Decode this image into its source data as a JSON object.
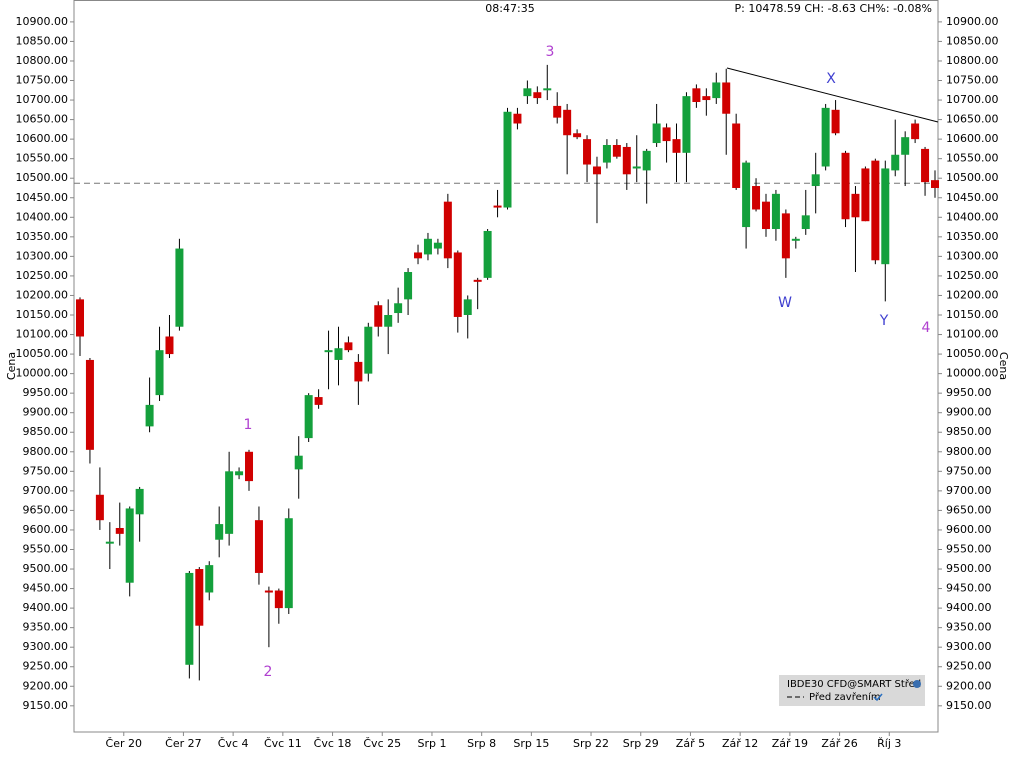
{
  "chart_data": {
    "type": "candlestick",
    "header_time": "08:47:35",
    "header_quote": "P: 10478.59 CH: -8.63  CH%: -0.08%",
    "ylabel": "Cena",
    "up_color": "#14a03c",
    "down_color": "#d00000",
    "grid": false,
    "prev_close": 10487.22,
    "legend": {
      "instrument": "IBDE30 CFD@SMART Střed",
      "line_label": "Před zavřením"
    },
    "annotations": [
      "1",
      "2",
      "3",
      "4",
      "W",
      "X",
      "Y"
    ],
    "ylim": [
      9083,
      10956
    ],
    "yticks": [
      {
        "value": 9150,
        "label": "9150.00"
      },
      {
        "value": 9200,
        "label": "9200.00"
      },
      {
        "value": 9250,
        "label": "9250.00"
      },
      {
        "value": 9300,
        "label": "9300.00"
      },
      {
        "value": 9350,
        "label": "9350.00"
      },
      {
        "value": 9400,
        "label": "9400.00"
      },
      {
        "value": 9450,
        "label": "9450.00"
      },
      {
        "value": 9500,
        "label": "9500.00"
      },
      {
        "value": 9550,
        "label": "9550.00"
      },
      {
        "value": 9600,
        "label": "9600.00"
      },
      {
        "value": 9650,
        "label": "9650.00"
      },
      {
        "value": 9700,
        "label": "9700.00"
      },
      {
        "value": 9750,
        "label": "9750.00"
      },
      {
        "value": 9800,
        "label": "9800.00"
      },
      {
        "value": 9850,
        "label": "9850.00"
      },
      {
        "value": 9900,
        "label": "9900.00"
      },
      {
        "value": 9950,
        "label": "9950.00"
      },
      {
        "value": 10000,
        "label": "10000.00"
      },
      {
        "value": 10050,
        "label": "10050.00"
      },
      {
        "value": 10100,
        "label": "10100.00"
      },
      {
        "value": 10150,
        "label": "10150.00"
      },
      {
        "value": 10200,
        "label": "10200.00"
      },
      {
        "value": 10250,
        "label": "10250.00"
      },
      {
        "value": 10300,
        "label": "10300.00"
      },
      {
        "value": 10350,
        "label": "10350.00"
      },
      {
        "value": 10400,
        "label": "10400.00"
      },
      {
        "value": 10450,
        "label": "10450.00"
      },
      {
        "value": 10500,
        "label": "10500.00"
      },
      {
        "value": 10550,
        "label": "10550.00"
      },
      {
        "value": 10600,
        "label": "10600.00"
      },
      {
        "value": 10650,
        "label": "10650.00"
      },
      {
        "value": 10700,
        "label": "10700.00"
      },
      {
        "value": 10750,
        "label": "10750.00"
      },
      {
        "value": 10800,
        "label": "10800.00"
      },
      {
        "value": 10850,
        "label": "10850.00"
      },
      {
        "value": 10900,
        "label": "10900.00"
      }
    ],
    "categories": [
      null,
      null,
      null,
      null,
      "Čer 20",
      null,
      null,
      null,
      null,
      null,
      "Čer 27",
      null,
      null,
      null,
      null,
      "Čvc 4",
      null,
      null,
      null,
      null,
      "Čvc 11",
      null,
      null,
      null,
      null,
      "Čvc 18",
      null,
      null,
      null,
      null,
      "Čvc 25",
      null,
      null,
      null,
      null,
      "Srp 1",
      null,
      null,
      null,
      null,
      "Srp 8",
      null,
      null,
      null,
      null,
      "Srp 15",
      null,
      null,
      null,
      null,
      null,
      "Srp 22",
      null,
      null,
      null,
      null,
      "Srp 29",
      null,
      null,
      null,
      null,
      "Zář 5",
      null,
      null,
      null,
      null,
      "Zář 12",
      null,
      null,
      null,
      null,
      "Zář 19",
      null,
      null,
      null,
      null,
      "Zář 26",
      null,
      null,
      null,
      null,
      "Říj 3",
      null,
      null,
      null,
      null,
      null
    ],
    "open": [
      10190,
      10035,
      9690,
      9565,
      9605,
      9465,
      9640,
      9865,
      9945,
      10095,
      10120,
      9255,
      9500,
      9440,
      9575,
      9590,
      9740,
      9800,
      9625,
      9445,
      9445,
      9400,
      9755,
      9835,
      9940,
      10055,
      10035,
      10080,
      10030,
      10000,
      10175,
      10120,
      10155,
      10190,
      10310,
      10305,
      10320,
      10440,
      10310,
      10150,
      10240,
      10245,
      10430,
      10425,
      10665,
      10710,
      10720,
      10725,
      10685,
      10675,
      10615,
      10600,
      10530,
      10540,
      10585,
      10580,
      10525,
      10520,
      10590,
      10630,
      10600,
      10565,
      10730,
      10710,
      10705,
      10745,
      10640,
      10375,
      10480,
      10440,
      10370,
      10410,
      10340,
      10370,
      10480,
      10530,
      10675,
      10565,
      10460,
      10525,
      10545,
      10280,
      10520,
      10560,
      10640,
      10575,
      10495
    ],
    "high": [
      10195,
      10040,
      9760,
      9620,
      9670,
      9660,
      9710,
      9990,
      10120,
      10150,
      10345,
      9495,
      9505,
      9520,
      9660,
      9800,
      9760,
      9805,
      9660,
      9455,
      9450,
      9655,
      9840,
      9950,
      9960,
      10110,
      10120,
      10095,
      10050,
      10130,
      10185,
      10190,
      10220,
      10270,
      10330,
      10360,
      10345,
      10460,
      10315,
      10200,
      10245,
      10370,
      10470,
      10680,
      10680,
      10750,
      10735,
      10790,
      10720,
      10690,
      10625,
      10610,
      10555,
      10600,
      10600,
      10590,
      10610,
      10575,
      10690,
      10640,
      10640,
      10720,
      10740,
      10730,
      10770,
      10780,
      10665,
      10545,
      10500,
      10460,
      10470,
      10420,
      10350,
      10470,
      10565,
      10690,
      10700,
      10570,
      10480,
      10530,
      10550,
      10545,
      10650,
      10620,
      10650,
      10580,
      10520
    ],
    "low": [
      10045,
      9770,
      9600,
      9500,
      9560,
      9430,
      9570,
      9850,
      9930,
      10040,
      10110,
      9220,
      9215,
      9420,
      9530,
      9560,
      9730,
      9700,
      9460,
      9300,
      9360,
      9385,
      9680,
      9825,
      9910,
      9960,
      9970,
      10055,
      9920,
      9980,
      10095,
      10050,
      10130,
      10150,
      10280,
      10290,
      10305,
      10270,
      10105,
      10090,
      10165,
      10240,
      10400,
      10420,
      10625,
      10690,
      10690,
      10700,
      10640,
      10510,
      10600,
      10490,
      10385,
      10525,
      10550,
      10470,
      10490,
      10435,
      10580,
      10540,
      10490,
      10490,
      10680,
      10660,
      10690,
      10560,
      10470,
      10320,
      10415,
      10350,
      10340,
      10245,
      10320,
      10355,
      10410,
      10520,
      10610,
      10375,
      10260,
      10390,
      10280,
      10185,
      10505,
      10480,
      10590,
      10455,
      10450
    ],
    "close": [
      10095,
      9805,
      9625,
      9570,
      9590,
      9655,
      9705,
      9920,
      10060,
      10050,
      10320,
      9490,
      9355,
      9510,
      9615,
      9750,
      9750,
      9725,
      9490,
      9440,
      9400,
      9630,
      9790,
      9945,
      9920,
      10060,
      10065,
      10060,
      9980,
      10120,
      10120,
      10150,
      10180,
      10260,
      10295,
      10345,
      10335,
      10295,
      10145,
      10190,
      10235,
      10365,
      10425,
      10670,
      10640,
      10730,
      10705,
      10730,
      10655,
      10610,
      10605,
      10535,
      10510,
      10585,
      10555,
      10510,
      10530,
      10570,
      10640,
      10595,
      10565,
      10710,
      10695,
      10700,
      10745,
      10665,
      10475,
      10540,
      10420,
      10370,
      10460,
      10295,
      10345,
      10405,
      10510,
      10680,
      10615,
      10395,
      10400,
      10390,
      10290,
      10525,
      10560,
      10605,
      10600,
      10490,
      10475
    ]
  }
}
